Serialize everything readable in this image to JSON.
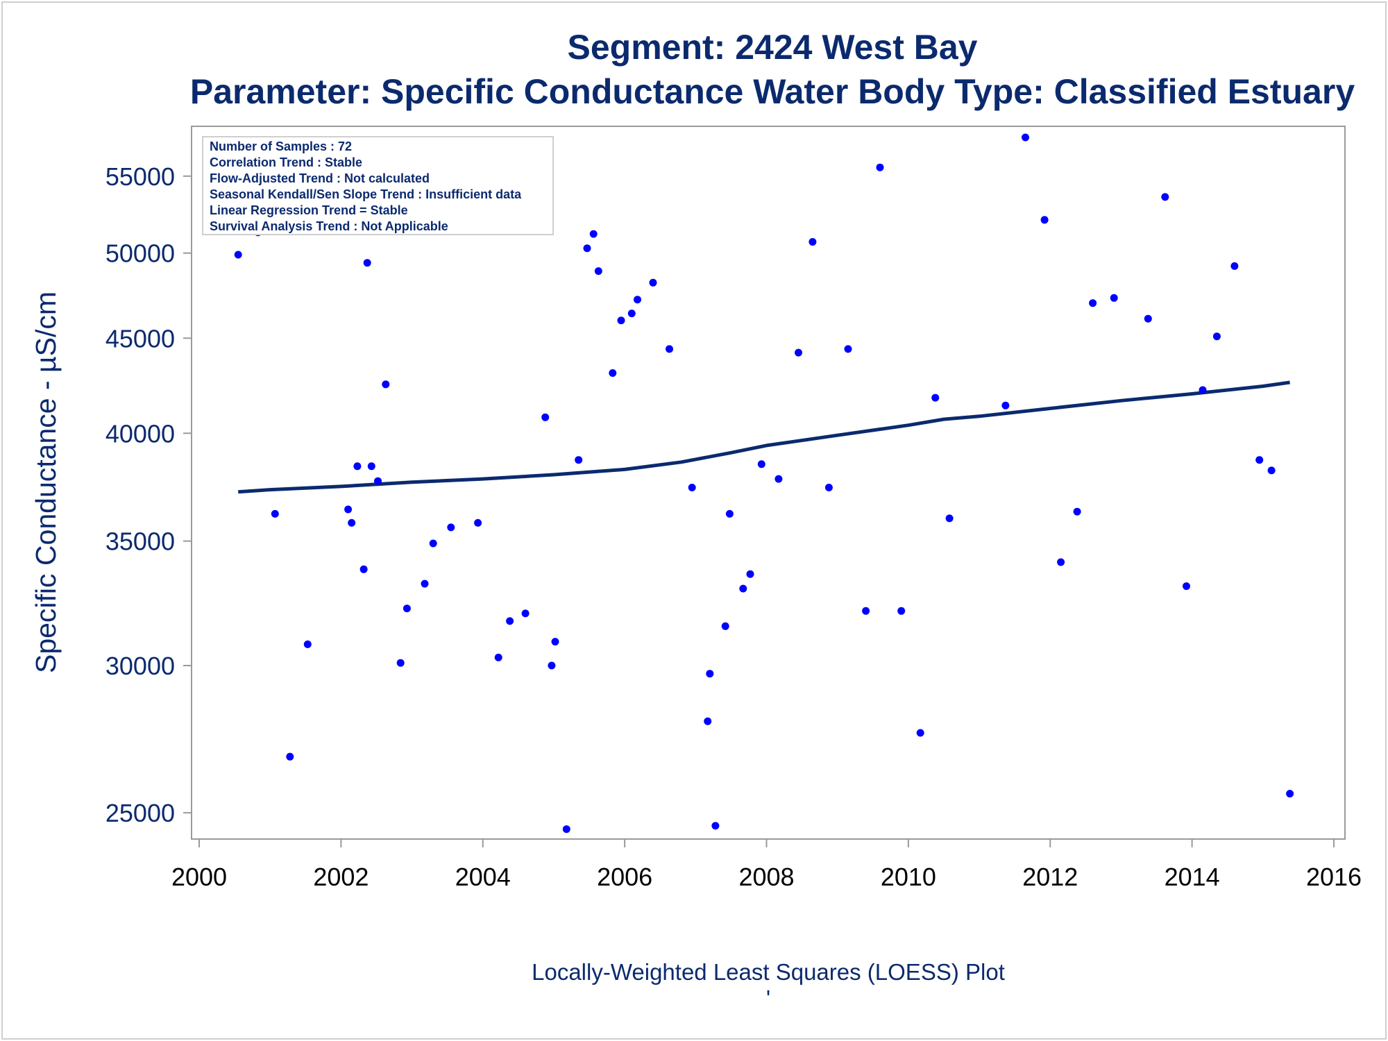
{
  "chart_data": {
    "type": "scatter",
    "title": "Segment: 2424  West Bay",
    "subtitle": "Parameter: Specific Conductance   Water Body Type: Classified Estuary",
    "xlabel": "Locally-Weighted Least Squares (LOESS) Plot",
    "footnote": "'",
    "ylabel": "Specific Conductance -  µS/cm",
    "y_scale": "log",
    "xlim": [
      2000,
      2016
    ],
    "ylim": [
      24200,
      58500
    ],
    "x_ticks": [
      2000,
      2002,
      2004,
      2006,
      2008,
      2010,
      2012,
      2014,
      2016
    ],
    "y_ticks": [
      25000,
      30000,
      35000,
      40000,
      45000,
      50000,
      55000
    ],
    "grid": false,
    "stats_box": {
      "position": "top-left",
      "lines": [
        "Number of Samples : 72",
        "Correlation Trend : Stable",
        "Flow-Adjusted Trend : Not calculated",
        "Seasonal Kendall/Sen Slope Trend : Insufficient data",
        "Linear Regression Trend = Stable",
        "Survival Analysis Trend : Not Applicable"
      ]
    },
    "series": [
      {
        "type": "scatter",
        "color": "#0000ff",
        "points": [
          [
            2000.55,
            49900
          ],
          [
            2000.83,
            51300
          ],
          [
            2001.07,
            36200
          ],
          [
            2001.28,
            26800
          ],
          [
            2001.53,
            30800
          ],
          [
            2002.1,
            36400
          ],
          [
            2002.15,
            35800
          ],
          [
            2002.23,
            38400
          ],
          [
            2002.32,
            33800
          ],
          [
            2002.37,
            49400
          ],
          [
            2002.43,
            38400
          ],
          [
            2002.52,
            37700
          ],
          [
            2002.63,
            42500
          ],
          [
            2002.84,
            30100
          ],
          [
            2002.93,
            32200
          ],
          [
            2003.18,
            33200
          ],
          [
            2003.3,
            34900
          ],
          [
            2003.55,
            35600
          ],
          [
            2003.93,
            35800
          ],
          [
            2004.22,
            30300
          ],
          [
            2004.38,
            31700
          ],
          [
            2004.6,
            32000
          ],
          [
            2004.88,
            40800
          ],
          [
            2004.97,
            30000
          ],
          [
            2005.02,
            30900
          ],
          [
            2005.18,
            24500
          ],
          [
            2005.35,
            38700
          ],
          [
            2005.47,
            50300
          ],
          [
            2005.56,
            51200
          ],
          [
            2005.63,
            48900
          ],
          [
            2005.83,
            43100
          ],
          [
            2005.95,
            46000
          ],
          [
            2006.1,
            46400
          ],
          [
            2006.18,
            47200
          ],
          [
            2006.4,
            48200
          ],
          [
            2006.63,
            44400
          ],
          [
            2006.95,
            37400
          ],
          [
            2007.17,
            28000
          ],
          [
            2007.2,
            29700
          ],
          [
            2007.28,
            24600
          ],
          [
            2007.42,
            31500
          ],
          [
            2007.48,
            36200
          ],
          [
            2007.67,
            33000
          ],
          [
            2007.77,
            33600
          ],
          [
            2007.93,
            38500
          ],
          [
            2008.17,
            37800
          ],
          [
            2008.45,
            44200
          ],
          [
            2008.65,
            50700
          ],
          [
            2008.88,
            37400
          ],
          [
            2009.15,
            44400
          ],
          [
            2009.4,
            32100
          ],
          [
            2009.6,
            55600
          ],
          [
            2009.9,
            32100
          ],
          [
            2010.17,
            27600
          ],
          [
            2010.38,
            41800
          ],
          [
            2010.58,
            36000
          ],
          [
            2011.37,
            41400
          ],
          [
            2011.65,
            57700
          ],
          [
            2011.92,
            52100
          ],
          [
            2012.15,
            34100
          ],
          [
            2012.38,
            36300
          ],
          [
            2012.6,
            47000
          ],
          [
            2012.9,
            47300
          ],
          [
            2013.38,
            46100
          ],
          [
            2013.62,
            53600
          ],
          [
            2013.92,
            33100
          ],
          [
            2014.15,
            42200
          ],
          [
            2014.35,
            45100
          ],
          [
            2014.6,
            49200
          ],
          [
            2014.95,
            38700
          ],
          [
            2015.12,
            38200
          ],
          [
            2015.38,
            25600
          ]
        ]
      },
      {
        "type": "line",
        "label": "LOESS",
        "color": "#0b2a6e",
        "points": [
          [
            2000.55,
            37200
          ],
          [
            2001.0,
            37300
          ],
          [
            2002.0,
            37450
          ],
          [
            2003.0,
            37650
          ],
          [
            2004.0,
            37800
          ],
          [
            2005.0,
            38000
          ],
          [
            2006.0,
            38250
          ],
          [
            2006.8,
            38600
          ],
          [
            2007.5,
            39050
          ],
          [
            2008.0,
            39400
          ],
          [
            2009.0,
            39900
          ],
          [
            2010.0,
            40400
          ],
          [
            2010.5,
            40700
          ],
          [
            2011.0,
            40850
          ],
          [
            2012.0,
            41250
          ],
          [
            2013.0,
            41650
          ],
          [
            2014.0,
            42000
          ],
          [
            2015.0,
            42400
          ],
          [
            2015.38,
            42600
          ]
        ]
      }
    ]
  }
}
